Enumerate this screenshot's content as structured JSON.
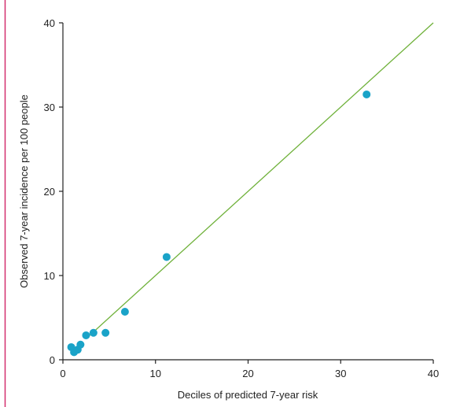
{
  "colors": {
    "border": "#d32f6f",
    "axis": "#222222",
    "reference_line": "#6fb13a",
    "points": "#1aa3c8"
  },
  "chart_data": {
    "type": "scatter",
    "xlabel": "Deciles of predicted 7-year risk",
    "ylabel": "Observed 7-year incidence per 100 people",
    "xlim": [
      0,
      40
    ],
    "ylim": [
      0,
      40
    ],
    "xticks": [
      0,
      10,
      20,
      30,
      40
    ],
    "yticks": [
      0,
      10,
      20,
      30,
      40
    ],
    "grid": false,
    "reference_line": {
      "from": [
        2.5,
        2.5
      ],
      "to": [
        40,
        40
      ]
    },
    "series": [
      {
        "points": [
          {
            "x": 0.9,
            "y": 1.5
          },
          {
            "x": 1.2,
            "y": 0.9
          },
          {
            "x": 1.6,
            "y": 1.2
          },
          {
            "x": 1.9,
            "y": 1.8
          },
          {
            "x": 2.5,
            "y": 2.9
          },
          {
            "x": 3.3,
            "y": 3.2
          },
          {
            "x": 4.6,
            "y": 3.2
          },
          {
            "x": 6.7,
            "y": 5.7
          },
          {
            "x": 11.2,
            "y": 12.2
          },
          {
            "x": 32.8,
            "y": 31.5
          }
        ]
      }
    ]
  }
}
